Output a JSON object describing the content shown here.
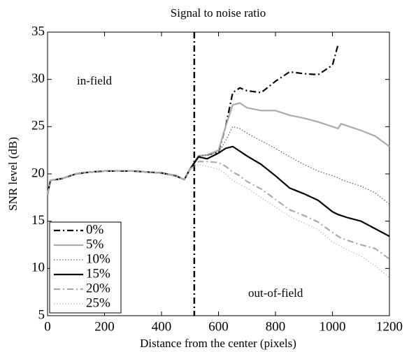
{
  "chart_data": {
    "type": "line",
    "title": "Signal to noise ratio",
    "xlabel": "Distance from the center (pixels)",
    "ylabel": "SNR level (dB)",
    "annotations": [
      "in-field",
      "out-of-field"
    ],
    "divider_x": 515,
    "x": [
      0,
      10,
      50,
      100,
      150,
      200,
      250,
      300,
      350,
      400,
      450,
      480,
      500,
      530,
      560,
      600,
      625,
      650,
      675,
      700,
      750,
      800,
      850,
      900,
      950,
      1000,
      1020,
      1030,
      1050,
      1100,
      1150,
      1200
    ],
    "series": [
      {
        "name": "0%",
        "color": "#000000",
        "style": "dashdot",
        "width": 2.2,
        "values": [
          17.8,
          19.3,
          19.5,
          20,
          20.2,
          20.3,
          20.3,
          20.3,
          20.2,
          20.1,
          19.8,
          19.4,
          20.5,
          21.9,
          22,
          22.3,
          25,
          28.6,
          29.1,
          28.8,
          28.6,
          29.8,
          30.8,
          30.6,
          30.5,
          31.5,
          33.7,
          null,
          null,
          null,
          null,
          null
        ]
      },
      {
        "name": "5%",
        "color": "#aaaaaa",
        "style": "solid",
        "width": 2.2,
        "values": [
          17.8,
          19.3,
          19.5,
          20,
          20.2,
          20.3,
          20.3,
          20.3,
          20.2,
          20.1,
          19.8,
          19.4,
          20.5,
          21.9,
          22,
          22.5,
          25,
          27.3,
          27.5,
          27,
          26.7,
          26.7,
          26.2,
          25.9,
          25.5,
          25,
          24.8,
          25.3,
          25.1,
          24.6,
          24,
          22.9
        ]
      },
      {
        "name": "10%",
        "color": "#555555",
        "style": "dotted",
        "width": 1.2,
        "values": [
          17.8,
          19.3,
          19.5,
          20,
          20.2,
          20.3,
          20.3,
          20.3,
          20.2,
          20.1,
          19.8,
          19.4,
          20.5,
          21.9,
          22,
          22.3,
          23.5,
          25,
          24.8,
          24.3,
          23.5,
          22.7,
          21.8,
          21,
          20.3,
          19.8,
          19.6,
          19.4,
          19.2,
          18.7,
          18,
          16.8
        ]
      },
      {
        "name": "15%",
        "color": "#000000",
        "style": "solid",
        "width": 2.2,
        "values": [
          17.8,
          19.3,
          19.5,
          20,
          20.2,
          20.3,
          20.3,
          20.3,
          20.2,
          20.1,
          19.8,
          19.4,
          20.5,
          21.8,
          21.6,
          22.2,
          22.7,
          22.9,
          22.4,
          21.9,
          21,
          19.8,
          18.5,
          17.9,
          17.2,
          16,
          15.7,
          15.6,
          15.4,
          15,
          14.2,
          13.4
        ]
      },
      {
        "name": "20%",
        "color": "#aaaaaa",
        "style": "dashdot",
        "width": 2.2,
        "values": [
          17.8,
          19.3,
          19.5,
          20,
          20.2,
          20.3,
          20.3,
          20.3,
          20.2,
          20.1,
          19.8,
          19.4,
          20.5,
          21.3,
          21.3,
          21.2,
          20.8,
          20.2,
          19.8,
          19.2,
          18.4,
          17.3,
          16.2,
          15.6,
          14.9,
          13.8,
          13.4,
          13.2,
          13,
          12.5,
          12.1,
          11
        ]
      },
      {
        "name": "25%",
        "color": "#bbbbbb",
        "style": "dotted",
        "width": 1.2,
        "values": [
          17.8,
          19.3,
          19.5,
          20,
          20.2,
          20.3,
          20.3,
          20.3,
          20.2,
          20.1,
          19.8,
          19.4,
          20.5,
          21,
          20.8,
          20.5,
          20,
          19.3,
          18.9,
          18.5,
          17.5,
          16.5,
          15.5,
          14.8,
          14.1,
          12.8,
          12.5,
          12.3,
          12,
          11.3,
          10.3,
          9
        ]
      }
    ],
    "xlim": [
      0,
      1200
    ],
    "xticks": [
      0,
      200,
      400,
      600,
      800,
      1000,
      1200
    ],
    "ylim": [
      5,
      35
    ],
    "yticks": [
      5,
      10,
      15,
      20,
      25,
      30,
      35
    ],
    "legend": "lower left"
  }
}
